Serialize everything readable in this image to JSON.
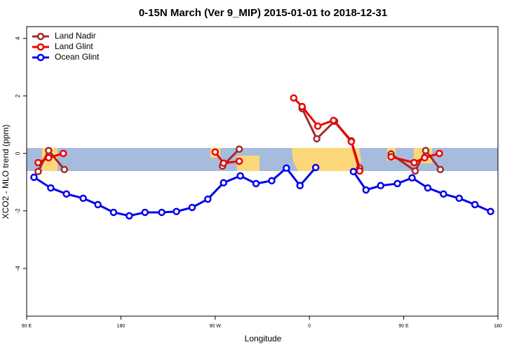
{
  "chart_data": {
    "type": "line",
    "title": "0-15N March (Ver 9_MIP)   2015-01-01 to 2018-12-31",
    "x_label": "Longitude",
    "y_label": "XCO2 - MLO trend (ppm)",
    "xlim": [
      90,
      540
    ],
    "ylim": [
      -5.66,
      4.41
    ],
    "xticks": [
      {
        "value": 90,
        "label": "90 E"
      },
      180,
      {
        "value": 270,
        "label": "90 W"
      },
      {
        "value": 360,
        "label": "0"
      },
      {
        "value": 450,
        "label": "90 E"
      },
      {
        "value": 540,
        "label": "180"
      }
    ],
    "yticks": [
      -4,
      -2,
      0,
      2,
      4
    ],
    "grid": false,
    "legend": "top-left",
    "series": [
      {
        "name": "Land Nadir",
        "color": "#a52a2a",
        "x": [
          101,
          111,
          126,
          null,
          277,
          293,
          null,
          353,
          367,
          384,
          400,
          408,
          null,
          438,
          461,
          471,
          485
        ],
        "values": [
          -0.63,
          0.1,
          -0.56,
          null,
          -0.44,
          0.15,
          null,
          1.56,
          0.51,
          1.12,
          0.44,
          -0.51,
          null,
          -0.02,
          -0.61,
          0.1,
          -0.56
        ]
      },
      {
        "name": "Land Glint",
        "color": "#ee0000",
        "x": [
          101,
          111,
          125,
          null,
          270,
          278,
          293,
          null,
          345,
          353,
          368,
          383,
          400,
          408,
          null,
          438,
          460,
          470,
          484
        ],
        "values": [
          -0.32,
          -0.15,
          0,
          null,
          0.05,
          -0.34,
          -0.27,
          null,
          1.93,
          1.63,
          0.95,
          1.15,
          0.41,
          -0.61,
          null,
          -0.12,
          -0.32,
          -0.15,
          0
        ]
      },
      {
        "name": "Ocean Glint",
        "color": "#0000ee",
        "x": [
          97,
          113,
          128,
          144,
          158,
          173,
          188,
          203,
          219,
          233,
          248,
          263,
          278,
          294,
          309,
          324,
          338,
          351,
          366,
          null,
          402,
          414,
          428,
          444,
          458,
          473,
          488,
          503,
          518,
          533
        ],
        "values": [
          -0.83,
          -1.2,
          -1.41,
          -1.56,
          -1.78,
          -2.05,
          -2.17,
          -2.05,
          -2.05,
          -2.02,
          -1.88,
          -1.59,
          -1.02,
          -0.78,
          -1.05,
          -0.95,
          -0.51,
          -1.12,
          -0.49,
          null,
          -0.63,
          -1.27,
          -1.12,
          -1.05,
          -0.85,
          -1.2,
          -1.41,
          -1.56,
          -1.78,
          -2.02
        ]
      }
    ]
  }
}
